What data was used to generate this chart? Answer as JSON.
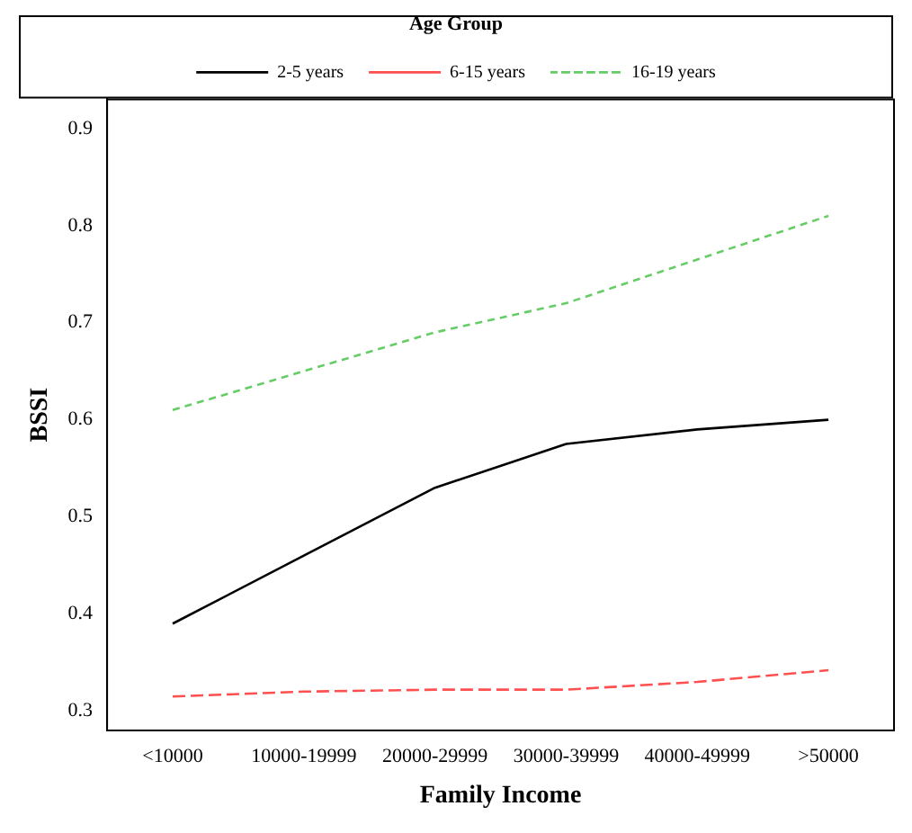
{
  "chart_data": {
    "type": "line",
    "xlabel": "Family Income",
    "ylabel": "BSSI",
    "legend_title": "Age Group",
    "legend": "top",
    "categories": [
      "<10000",
      "10000-19999",
      "20000-29999",
      "30000-39999",
      "40000-49999",
      ">50000"
    ],
    "series": [
      {
        "name": "2-5 years",
        "color": "#000000",
        "line_style": "solid",
        "values": [
          0.39,
          0.46,
          0.53,
          0.575,
          0.59,
          0.6
        ]
      },
      {
        "name": "6-15 years",
        "color": "#ff5050",
        "line_style": "dashed",
        "values": [
          0.315,
          0.32,
          0.322,
          0.322,
          0.33,
          0.342
        ]
      },
      {
        "name": "16-19 years",
        "color": "#66cc66",
        "line_style": "dotted",
        "values": [
          0.61,
          0.65,
          0.69,
          0.72,
          0.765,
          0.81
        ]
      }
    ],
    "ylim": [
      0.28,
      0.93
    ],
    "yticks": [
      0.3,
      0.4,
      0.5,
      0.6,
      0.7,
      0.8,
      0.9
    ],
    "grid": false,
    "marker": "none"
  }
}
